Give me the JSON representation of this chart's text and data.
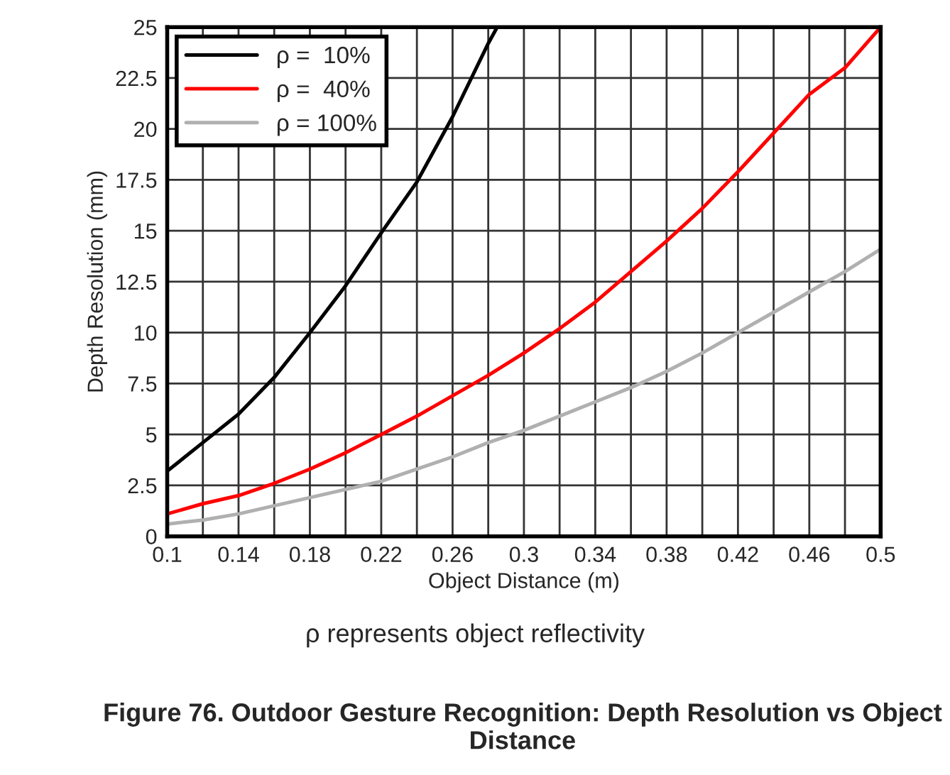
{
  "chart_data": {
    "type": "line",
    "title": "Figure 76. Outdoor Gesture Recognition: Depth Resolution vs Object Distance",
    "xlabel": "Object Distance (m)",
    "ylabel": "Depth Resolution (mm)",
    "annotations": [
      "ρ represents object reflectivity"
    ],
    "series": [
      {
        "name": "ρ =  10%",
        "color": "#000000",
        "x": [
          0.1,
          0.12,
          0.14,
          0.16,
          0.18,
          0.2,
          0.22,
          0.24,
          0.26,
          0.28,
          0.285
        ],
        "values": [
          3.2,
          4.6,
          6.0,
          7.8,
          10.0,
          12.3,
          14.9,
          17.4,
          20.6,
          24.2,
          25
        ]
      },
      {
        "name": "ρ =  40%",
        "color": "#ff0000",
        "x": [
          0.1,
          0.12,
          0.14,
          0.16,
          0.18,
          0.2,
          0.22,
          0.24,
          0.26,
          0.28,
          0.3,
          0.32,
          0.34,
          0.36,
          0.38,
          0.4,
          0.42,
          0.44,
          0.46,
          0.48,
          0.5
        ],
        "values": [
          1.1,
          1.6,
          2.0,
          2.6,
          3.3,
          4.1,
          5.0,
          5.9,
          6.9,
          7.9,
          9.0,
          10.2,
          11.5,
          13.0,
          14.5,
          16.1,
          17.9,
          19.8,
          21.7,
          23.0,
          25
        ]
      },
      {
        "name": "ρ = 100%",
        "color": "#b0b0b0",
        "x": [
          0.1,
          0.12,
          0.14,
          0.16,
          0.18,
          0.2,
          0.22,
          0.24,
          0.26,
          0.28,
          0.3,
          0.32,
          0.34,
          0.36,
          0.38,
          0.4,
          0.42,
          0.44,
          0.46,
          0.48,
          0.5
        ],
        "values": [
          0.6,
          0.8,
          1.1,
          1.5,
          1.9,
          2.3,
          2.7,
          3.3,
          3.9,
          4.6,
          5.2,
          5.9,
          6.6,
          7.3,
          8.1,
          9.0,
          10.0,
          11.0,
          12.0,
          13.0,
          14.1
        ]
      }
    ],
    "xlim": [
      0.1,
      0.5
    ],
    "xticks": [
      0.1,
      {
        "value": 0.12,
        "label": null
      },
      0.14,
      {
        "value": 0.16,
        "label": null
      },
      0.18,
      {
        "value": 0.2,
        "label": null
      },
      0.22,
      {
        "value": 0.24,
        "label": null
      },
      0.26,
      {
        "value": 0.28,
        "label": null
      },
      0.3,
      {
        "value": 0.32,
        "label": null
      },
      0.34,
      {
        "value": 0.36,
        "label": null
      },
      0.38,
      {
        "value": 0.4,
        "label": null
      },
      0.42,
      {
        "value": 0.44,
        "label": null
      },
      0.46,
      {
        "value": 0.48,
        "label": null
      },
      0.5
    ],
    "ylim": [
      0,
      25
    ],
    "yticks": [
      0,
      2.5,
      5,
      7.5,
      10,
      12.5,
      15,
      17.5,
      20,
      22.5,
      25
    ],
    "grid": true,
    "legend": "top left",
    "line_style": "solid",
    "marker": "none"
  }
}
